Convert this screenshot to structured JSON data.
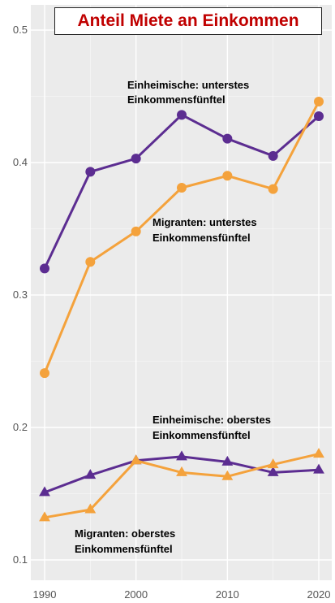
{
  "chart_data": {
    "type": "line",
    "title": "Anteil Miete an Einkommen",
    "xlabel": "",
    "ylabel": "",
    "x": [
      1990,
      1995,
      2000,
      2005,
      2010,
      2015,
      2020
    ],
    "xlim": [
      1988,
      2021
    ],
    "ylim": [
      0.09,
      0.515
    ],
    "x_ticks": [
      1990,
      2000,
      2010,
      2020
    ],
    "y_ticks": [
      0.1,
      0.2,
      0.3,
      0.4,
      0.5
    ],
    "x_tick_labels": [
      "1990",
      "2000",
      "2010",
      "2020"
    ],
    "y_tick_labels": [
      "0.1",
      "0.2",
      "0.3",
      "0.4",
      "0.5"
    ],
    "grid": true,
    "colors": {
      "purple": "#5c2d91",
      "orange": "#f4a23c",
      "background": "#ebebeb",
      "grid": "#ffffff",
      "title": "#c00000"
    },
    "series": [
      {
        "color": "#5c2d91",
        "marker": "circle",
        "values": [
          0.32,
          0.393,
          0.403,
          0.436,
          0.418,
          0.405,
          0.435
        ]
      },
      {
        "color": "#f4a23c",
        "marker": "circle",
        "values": [
          0.241,
          0.325,
          0.348,
          0.381,
          0.39,
          0.38,
          0.446
        ]
      },
      {
        "color": "#5c2d91",
        "marker": "triangle",
        "values": [
          0.151,
          0.164,
          0.175,
          0.178,
          0.174,
          0.166,
          0.168
        ]
      },
      {
        "color": "#f4a23c",
        "marker": "triangle",
        "values": [
          0.132,
          0.138,
          0.175,
          0.166,
          0.163,
          0.172,
          0.18
        ]
      }
    ],
    "annotations": [
      {
        "lines": [
          "Einheimische: unterstes",
          "Einkommensfünftel"
        ]
      },
      {
        "lines": [
          "Migranten: unterstes",
          "Einkommensfünftel"
        ]
      },
      {
        "lines": [
          "Einheimische: oberstes",
          "Einkommensfünftel"
        ]
      },
      {
        "lines": [
          "Migranten: oberstes",
          "Einkommensfünftel"
        ]
      }
    ]
  }
}
